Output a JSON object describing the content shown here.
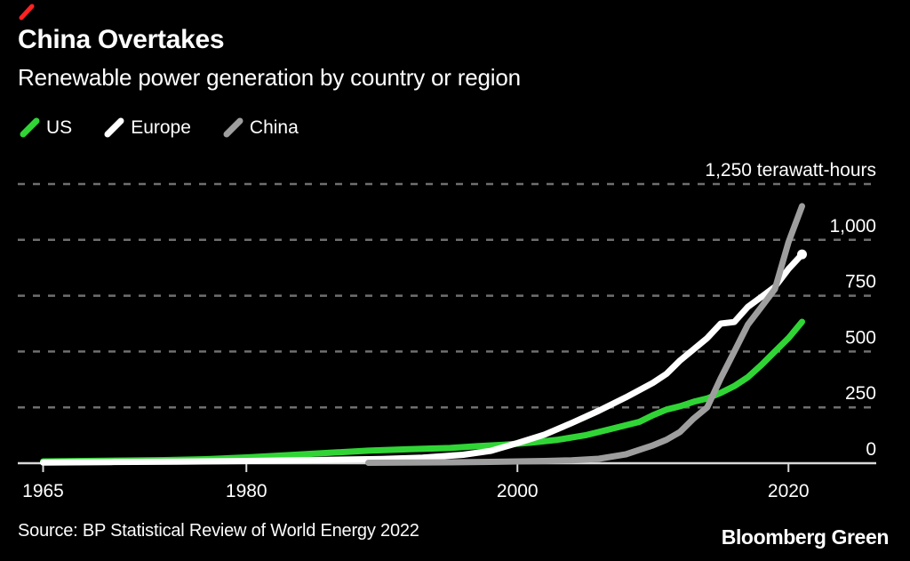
{
  "header": {
    "title": "China Overtakes",
    "subtitle": "Renewable power generation by country or region"
  },
  "legend": [
    {
      "label": "US",
      "color": "#30d535"
    },
    {
      "label": "Europe",
      "color": "#ffffff"
    },
    {
      "label": "China",
      "color": "#9e9e9e"
    }
  ],
  "footer": {
    "source": "Source: BP Statistical Review of World Energy 2022",
    "brand": "Bloomberg Green"
  },
  "colors": {
    "background": "#000000",
    "brand_red": "#ff2222",
    "grid": "#6f6f6f",
    "axis": "#d9d9d9",
    "text": "#ffffff"
  },
  "chart_data": {
    "type": "line",
    "title": "China Overtakes",
    "subtitle": "Renewable power generation by country or region",
    "xlabel": "",
    "ylabel": "terawatt-hours",
    "xlim": [
      1965,
      2021.5
    ],
    "ylim": [
      0,
      1250
    ],
    "grid": "dashed horizontal",
    "legend_position": "top-left",
    "xticks": [
      {
        "value": 1965,
        "label": "1965"
      },
      {
        "value": 1980,
        "label": "1980"
      },
      {
        "value": 2000,
        "label": "2000"
      },
      {
        "value": 2020,
        "label": "2020"
      }
    ],
    "yticks": [
      {
        "value": 0,
        "label": "0"
      },
      {
        "value": 250,
        "label": "250"
      },
      {
        "value": 500,
        "label": "500"
      },
      {
        "value": 750,
        "label": "750"
      },
      {
        "value": 1000,
        "label": "1,000"
      },
      {
        "value": 1250,
        "label": "1,250 terawatt-hours"
      }
    ],
    "series": [
      {
        "name": "US",
        "color": "#30d535",
        "end_dot": false,
        "points": [
          [
            1965,
            8
          ],
          [
            1968,
            10
          ],
          [
            1971,
            12
          ],
          [
            1974,
            14
          ],
          [
            1977,
            18
          ],
          [
            1980,
            26
          ],
          [
            1983,
            36
          ],
          [
            1986,
            46
          ],
          [
            1989,
            56
          ],
          [
            1992,
            63
          ],
          [
            1995,
            68
          ],
          [
            1997,
            76
          ],
          [
            1999,
            83
          ],
          [
            2001,
            92
          ],
          [
            2003,
            105
          ],
          [
            2005,
            125
          ],
          [
            2007,
            155
          ],
          [
            2009,
            185
          ],
          [
            2010,
            215
          ],
          [
            2011,
            240
          ],
          [
            2012,
            255
          ],
          [
            2013,
            275
          ],
          [
            2014,
            290
          ],
          [
            2015,
            315
          ],
          [
            2016,
            345
          ],
          [
            2017,
            385
          ],
          [
            2018,
            440
          ],
          [
            2019,
            500
          ],
          [
            2020,
            560
          ],
          [
            2021,
            633
          ]
        ]
      },
      {
        "name": "Europe",
        "color": "#ffffff",
        "end_dot": true,
        "points": [
          [
            1965,
            3
          ],
          [
            1970,
            5
          ],
          [
            1975,
            7
          ],
          [
            1980,
            10
          ],
          [
            1985,
            14
          ],
          [
            1990,
            19
          ],
          [
            1993,
            25
          ],
          [
            1996,
            38
          ],
          [
            1998,
            55
          ],
          [
            2000,
            90
          ],
          [
            2002,
            128
          ],
          [
            2004,
            180
          ],
          [
            2006,
            235
          ],
          [
            2008,
            295
          ],
          [
            2010,
            360
          ],
          [
            2011,
            400
          ],
          [
            2012,
            460
          ],
          [
            2013,
            510
          ],
          [
            2014,
            560
          ],
          [
            2015,
            625
          ],
          [
            2016,
            632
          ],
          [
            2017,
            700
          ],
          [
            2018,
            745
          ],
          [
            2019,
            790
          ],
          [
            2020,
            870
          ],
          [
            2021,
            935
          ]
        ]
      },
      {
        "name": "China",
        "color": "#9e9e9e",
        "end_dot": false,
        "points": [
          [
            1989,
            2
          ],
          [
            1992,
            3
          ],
          [
            1995,
            4
          ],
          [
            1998,
            6
          ],
          [
            2000,
            8
          ],
          [
            2002,
            10
          ],
          [
            2004,
            13
          ],
          [
            2006,
            20
          ],
          [
            2008,
            40
          ],
          [
            2010,
            80
          ],
          [
            2011,
            105
          ],
          [
            2012,
            140
          ],
          [
            2013,
            200
          ],
          [
            2014,
            250
          ],
          [
            2015,
            380
          ],
          [
            2016,
            500
          ],
          [
            2017,
            620
          ],
          [
            2018,
            700
          ],
          [
            2019,
            780
          ],
          [
            2020,
            990
          ],
          [
            2021,
            1151
          ]
        ]
      }
    ]
  }
}
